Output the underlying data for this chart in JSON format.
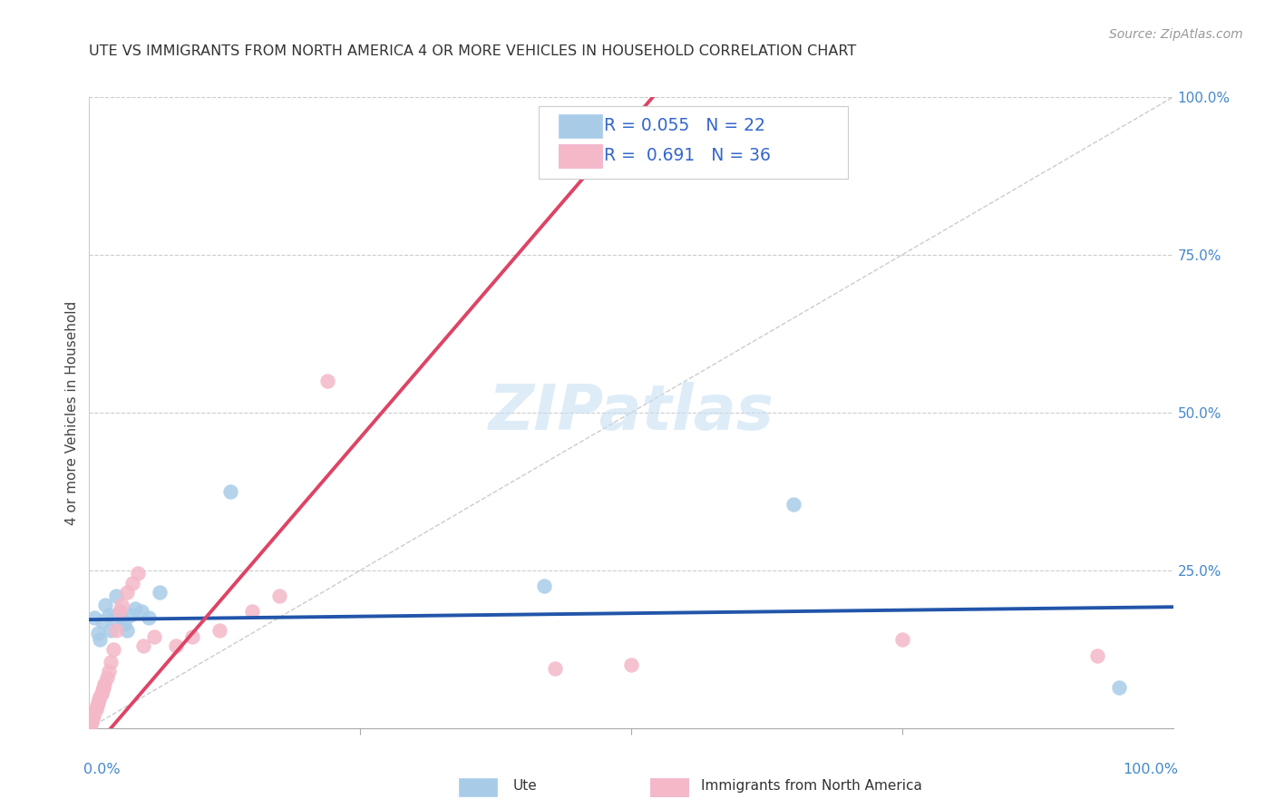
{
  "title": "UTE VS IMMIGRANTS FROM NORTH AMERICA 4 OR MORE VEHICLES IN HOUSEHOLD CORRELATION CHART",
  "source": "Source: ZipAtlas.com",
  "ylabel": "4 or more Vehicles in Household",
  "legend_label1": "Ute",
  "legend_label2": "Immigrants from North America",
  "R1": 0.055,
  "N1": 22,
  "R2": 0.691,
  "N2": 36,
  "color_blue": "#a8cce8",
  "color_pink": "#f4b8c8",
  "color_blue_line": "#2255aa",
  "color_pink_line": "#dd4466",
  "color_diagonal": "#cccccc",
  "background": "#ffffff",
  "blue_x": [
    0.005,
    0.008,
    0.01,
    0.012,
    0.015,
    0.018,
    0.02,
    0.022,
    0.025,
    0.028,
    0.03,
    0.032,
    0.035,
    0.038,
    0.042,
    0.048,
    0.055,
    0.065,
    0.42,
    0.65,
    0.95,
    0.13
  ],
  "blue_y": [
    0.175,
    0.15,
    0.14,
    0.17,
    0.195,
    0.18,
    0.155,
    0.175,
    0.21,
    0.185,
    0.175,
    0.165,
    0.155,
    0.18,
    0.19,
    0.185,
    0.175,
    0.215,
    0.225,
    0.355,
    0.065,
    0.375
  ],
  "pink_x": [
    0.001,
    0.002,
    0.003,
    0.004,
    0.005,
    0.006,
    0.007,
    0.008,
    0.009,
    0.01,
    0.011,
    0.012,
    0.013,
    0.014,
    0.016,
    0.018,
    0.02,
    0.022,
    0.025,
    0.028,
    0.03,
    0.035,
    0.04,
    0.045,
    0.05,
    0.06,
    0.08,
    0.095,
    0.12,
    0.15,
    0.175,
    0.22,
    0.43,
    0.5,
    0.75,
    0.93
  ],
  "pink_y": [
    0.005,
    0.01,
    0.015,
    0.02,
    0.025,
    0.03,
    0.035,
    0.04,
    0.045,
    0.05,
    0.055,
    0.06,
    0.065,
    0.07,
    0.08,
    0.09,
    0.105,
    0.125,
    0.155,
    0.185,
    0.195,
    0.215,
    0.23,
    0.245,
    0.13,
    0.145,
    0.13,
    0.145,
    0.155,
    0.185,
    0.21,
    0.55,
    0.095,
    0.1,
    0.14,
    0.115
  ]
}
